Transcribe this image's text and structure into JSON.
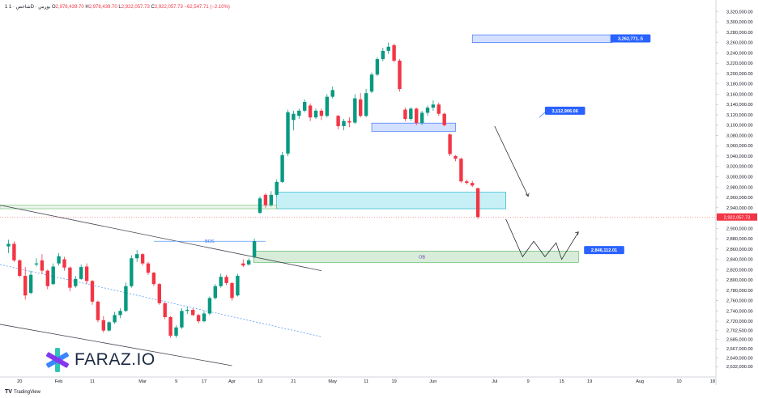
{
  "legend": {
    "symbol": "1 شاخص · 1D · بورس",
    "o_label": "O",
    "o": "2,978,439.70",
    "h_label": "H",
    "h": "2,978,439.70",
    "l_label": "L",
    "l": "2,922,057.73",
    "c_label": "C",
    "c": "2,922,057.73",
    "change": "−62,547.71 (−2.10%)"
  },
  "brand": {
    "logo_text": "FARAZ.IO",
    "footer_text": "TradingView",
    "footer_icon": "TV"
  },
  "colors": {
    "up": "#089981",
    "down": "#f23645",
    "label_blue": "#2962ff"
  },
  "chart_data": {
    "type": "candlestick",
    "y_axis": {
      "min": 2612000,
      "max": 3330000,
      "tick_labels": [
        "3,320,000.00",
        "3,300,000.00",
        "3,280,000.00",
        "3,260,000.00",
        "3,240,000.00",
        "3,220,000.00",
        "3,200,000.00",
        "3,180,000.00",
        "3,160,000.00",
        "3,140,000.00",
        "3,120,000.00",
        "3,100,000.00",
        "3,080,000.00",
        "3,060,000.00",
        "3,040,000.00",
        "3,020,000.00",
        "3,000,000.00",
        "2,980,000.00",
        "2,960,000.00",
        "2,940,000.00",
        "2,920,000.00",
        "2,900,000.00",
        "2,880,000.00",
        "2,860,000.00",
        "2,840,000.00",
        "2,820,000.00",
        "2,800,000.00",
        "2,780,000.00",
        "2,760,000.00",
        "2,740,000.00",
        "2,720,000.00",
        "2,702,500.00",
        "2,685,000.00",
        "2,667,000.00",
        "2,649,000.00",
        "2,632,000.00"
      ],
      "tick_values": [
        3320000,
        3300000,
        3280000,
        3260000,
        3240000,
        3220000,
        3200000,
        3180000,
        3160000,
        3140000,
        3120000,
        3100000,
        3080000,
        3060000,
        3040000,
        3020000,
        3000000,
        2980000,
        2960000,
        2940000,
        2920000,
        2900000,
        2880000,
        2860000,
        2840000,
        2820000,
        2800000,
        2780000,
        2760000,
        2740000,
        2720000,
        2702500,
        2685000,
        2667000,
        2649000,
        2632000
      ]
    },
    "x_axis": {
      "tick_labels": [
        "20",
        "Feb",
        "11",
        "Mar",
        "9",
        "17",
        "Apr",
        "13",
        "21",
        "May",
        "11",
        "19",
        "Jun",
        "Jul",
        "9",
        "15",
        "19",
        "Aug",
        "10",
        "18"
      ],
      "tick_index": [
        2,
        9,
        15,
        24,
        30,
        35,
        40,
        45,
        51,
        58,
        64,
        69,
        76,
        87,
        93,
        99,
        104,
        113,
        120,
        126
      ]
    },
    "candles": [
      [
        2865000,
        2878000,
        2852000,
        2870000
      ],
      [
        2870000,
        2875000,
        2835000,
        2838000
      ],
      [
        2838000,
        2840000,
        2805000,
        2808000
      ],
      [
        2808000,
        2825000,
        2762000,
        2770000
      ],
      [
        2775000,
        2818000,
        2772000,
        2810000
      ],
      [
        2830000,
        2842000,
        2826000,
        2832000
      ],
      [
        2838000,
        2850000,
        2812000,
        2818000
      ],
      [
        2818000,
        2820000,
        2782000,
        2788000
      ],
      [
        2792000,
        2832000,
        2790000,
        2826000
      ],
      [
        2832000,
        2852000,
        2828000,
        2846000
      ],
      [
        2840000,
        2845000,
        2818000,
        2824000
      ],
      [
        2824000,
        2826000,
        2778000,
        2785000
      ],
      [
        2788000,
        2808000,
        2785000,
        2802000
      ],
      [
        2802000,
        2830000,
        2800000,
        2825000
      ],
      [
        2826000,
        2832000,
        2792000,
        2798000
      ],
      [
        2798000,
        2800000,
        2752000,
        2758000
      ],
      [
        2758000,
        2760000,
        2718000,
        2722000
      ],
      [
        2722000,
        2730000,
        2698000,
        2702000
      ],
      [
        2702000,
        2720000,
        2700000,
        2718000
      ],
      [
        2718000,
        2738000,
        2715000,
        2732000
      ],
      [
        2732000,
        2745000,
        2726000,
        2740000
      ],
      [
        2740000,
        2795000,
        2738000,
        2788000
      ],
      [
        2788000,
        2848000,
        2785000,
        2842000
      ],
      [
        2842000,
        2858000,
        2835000,
        2850000
      ],
      [
        2850000,
        2852000,
        2828000,
        2832000
      ],
      [
        2832000,
        2835000,
        2810000,
        2814000
      ],
      [
        2814000,
        2816000,
        2788000,
        2792000
      ],
      [
        2792000,
        2794000,
        2752000,
        2755000
      ],
      [
        2755000,
        2757000,
        2724000,
        2728000
      ],
      [
        2728000,
        2730000,
        2688000,
        2692000
      ],
      [
        2692000,
        2712000,
        2688000,
        2708000
      ],
      [
        2708000,
        2745000,
        2705000,
        2740000
      ],
      [
        2740000,
        2748000,
        2734000,
        2742000
      ],
      [
        2742000,
        2745000,
        2730000,
        2732000
      ],
      [
        2732000,
        2734000,
        2716000,
        2720000
      ],
      [
        2720000,
        2740000,
        2718000,
        2735000
      ],
      [
        2735000,
        2768000,
        2732000,
        2765000
      ],
      [
        2765000,
        2792000,
        2762000,
        2788000
      ],
      [
        2788000,
        2812000,
        2785000,
        2806000
      ],
      [
        2806000,
        2810000,
        2790000,
        2794000
      ],
      [
        2794000,
        2796000,
        2760000,
        2765000
      ],
      [
        2770000,
        2812000,
        2768000,
        2808000
      ],
      [
        2832000,
        2840000,
        2825000,
        2828000
      ],
      [
        2830000,
        2842000,
        2828000,
        2838000
      ],
      [
        2845000,
        2880000,
        2842000,
        2875000
      ],
      [
        2930000,
        2962000,
        2928000,
        2958000
      ],
      [
        2965000,
        2968000,
        2940000,
        2945000
      ],
      [
        2945000,
        2972000,
        2942000,
        2965000
      ],
      [
        2965000,
        2995000,
        2962000,
        2990000
      ],
      [
        2990000,
        3048000,
        2988000,
        3042000
      ],
      [
        3045000,
        3130000,
        3040000,
        3125000
      ],
      [
        3110000,
        3128000,
        3090000,
        3122000
      ],
      [
        3118000,
        3132000,
        3112000,
        3128000
      ],
      [
        3128000,
        3150000,
        3125000,
        3145000
      ],
      [
        3138000,
        3142000,
        3108000,
        3115000
      ],
      [
        3115000,
        3132000,
        3112000,
        3128000
      ],
      [
        3128000,
        3132000,
        3110000,
        3118000
      ],
      [
        3118000,
        3160000,
        3115000,
        3155000
      ],
      [
        3155000,
        3175000,
        3152000,
        3168000
      ],
      [
        3118000,
        3120000,
        3092000,
        3098000
      ],
      [
        3098000,
        3112000,
        3090000,
        3108000
      ],
      [
        3108000,
        3115000,
        3096000,
        3105000
      ],
      [
        3105000,
        3160000,
        3102000,
        3152000
      ],
      [
        3150000,
        3162000,
        3115000,
        3118000
      ],
      [
        3118000,
        3170000,
        3115000,
        3162000
      ],
      [
        3165000,
        3202000,
        3162000,
        3198000
      ],
      [
        3198000,
        3232000,
        3195000,
        3228000
      ],
      [
        3228000,
        3250000,
        3224000,
        3244000
      ],
      [
        3244000,
        3260000,
        3238000,
        3252000
      ],
      [
        3255000,
        3258000,
        3222000,
        3225000
      ],
      [
        3225000,
        3228000,
        3165000,
        3170000
      ],
      [
        3130000,
        3134000,
        3108000,
        3112000
      ],
      [
        3112000,
        3135000,
        3108000,
        3132000
      ],
      [
        3132000,
        3134000,
        3100000,
        3104000
      ],
      [
        3104000,
        3128000,
        3100000,
        3124000
      ],
      [
        3124000,
        3138000,
        3118000,
        3134000
      ],
      [
        3134000,
        3148000,
        3128000,
        3140000
      ],
      [
        3140000,
        3144000,
        3118000,
        3122000
      ],
      [
        3122000,
        3124000,
        3098000,
        3100000
      ],
      [
        3082000,
        3084000,
        3040000,
        3044000
      ],
      [
        3040000,
        3042000,
        3030000,
        3035000
      ],
      [
        3035000,
        3037000,
        2988000,
        2991000
      ],
      [
        2991000,
        2995000,
        2985000,
        2988000
      ],
      [
        2988000,
        2992000,
        2980000,
        2983000
      ],
      [
        2978000,
        2978000,
        2918000,
        2922000
      ]
    ],
    "current_price_label": "2,922,057.73",
    "annotations": {
      "target_top": "3,262,771..5",
      "target_mid": "3,112,906.06",
      "target_low": "2,846,112.01",
      "ob": "OB",
      "bos": "BOS"
    }
  }
}
